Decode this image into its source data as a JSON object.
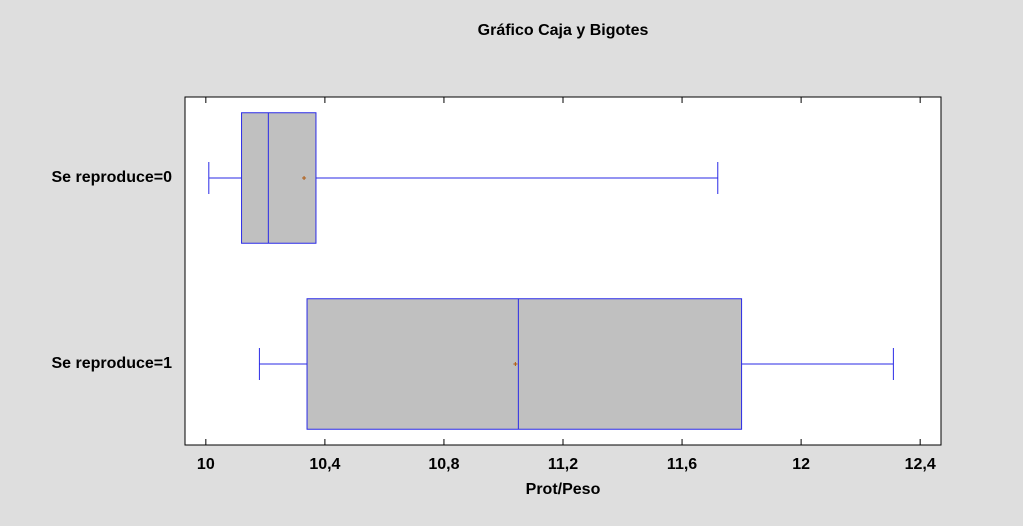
{
  "chart_data": {
    "type": "box",
    "title": "Gráfico Caja y Bigotes",
    "x_label": "Prot/Peso",
    "categories": [
      "Se reproduce=0",
      "Se reproduce=1"
    ],
    "boxes": [
      {
        "min": 10.01,
        "q1": 10.12,
        "median": 10.21,
        "mean": 10.33,
        "q3": 10.37,
        "max": 11.72
      },
      {
        "min": 10.18,
        "q1": 10.34,
        "median": 11.05,
        "mean": 11.04,
        "q3": 11.8,
        "max": 12.31
      }
    ],
    "box_color": "#c0c0c0",
    "line_color": "#2a2ae6",
    "mean_color": "#b05a10",
    "xlim": [
      9.93,
      12.47
    ],
    "xticks": [
      10,
      {
        "value": 10.4,
        "label": "10,4"
      },
      {
        "value": 10.8,
        "label": "10,8"
      },
      {
        "value": 11.2,
        "label": "11,2"
      },
      {
        "value": 11.6,
        "label": "11,6"
      },
      12,
      {
        "value": 12.4,
        "label": "12,4"
      }
    ]
  }
}
